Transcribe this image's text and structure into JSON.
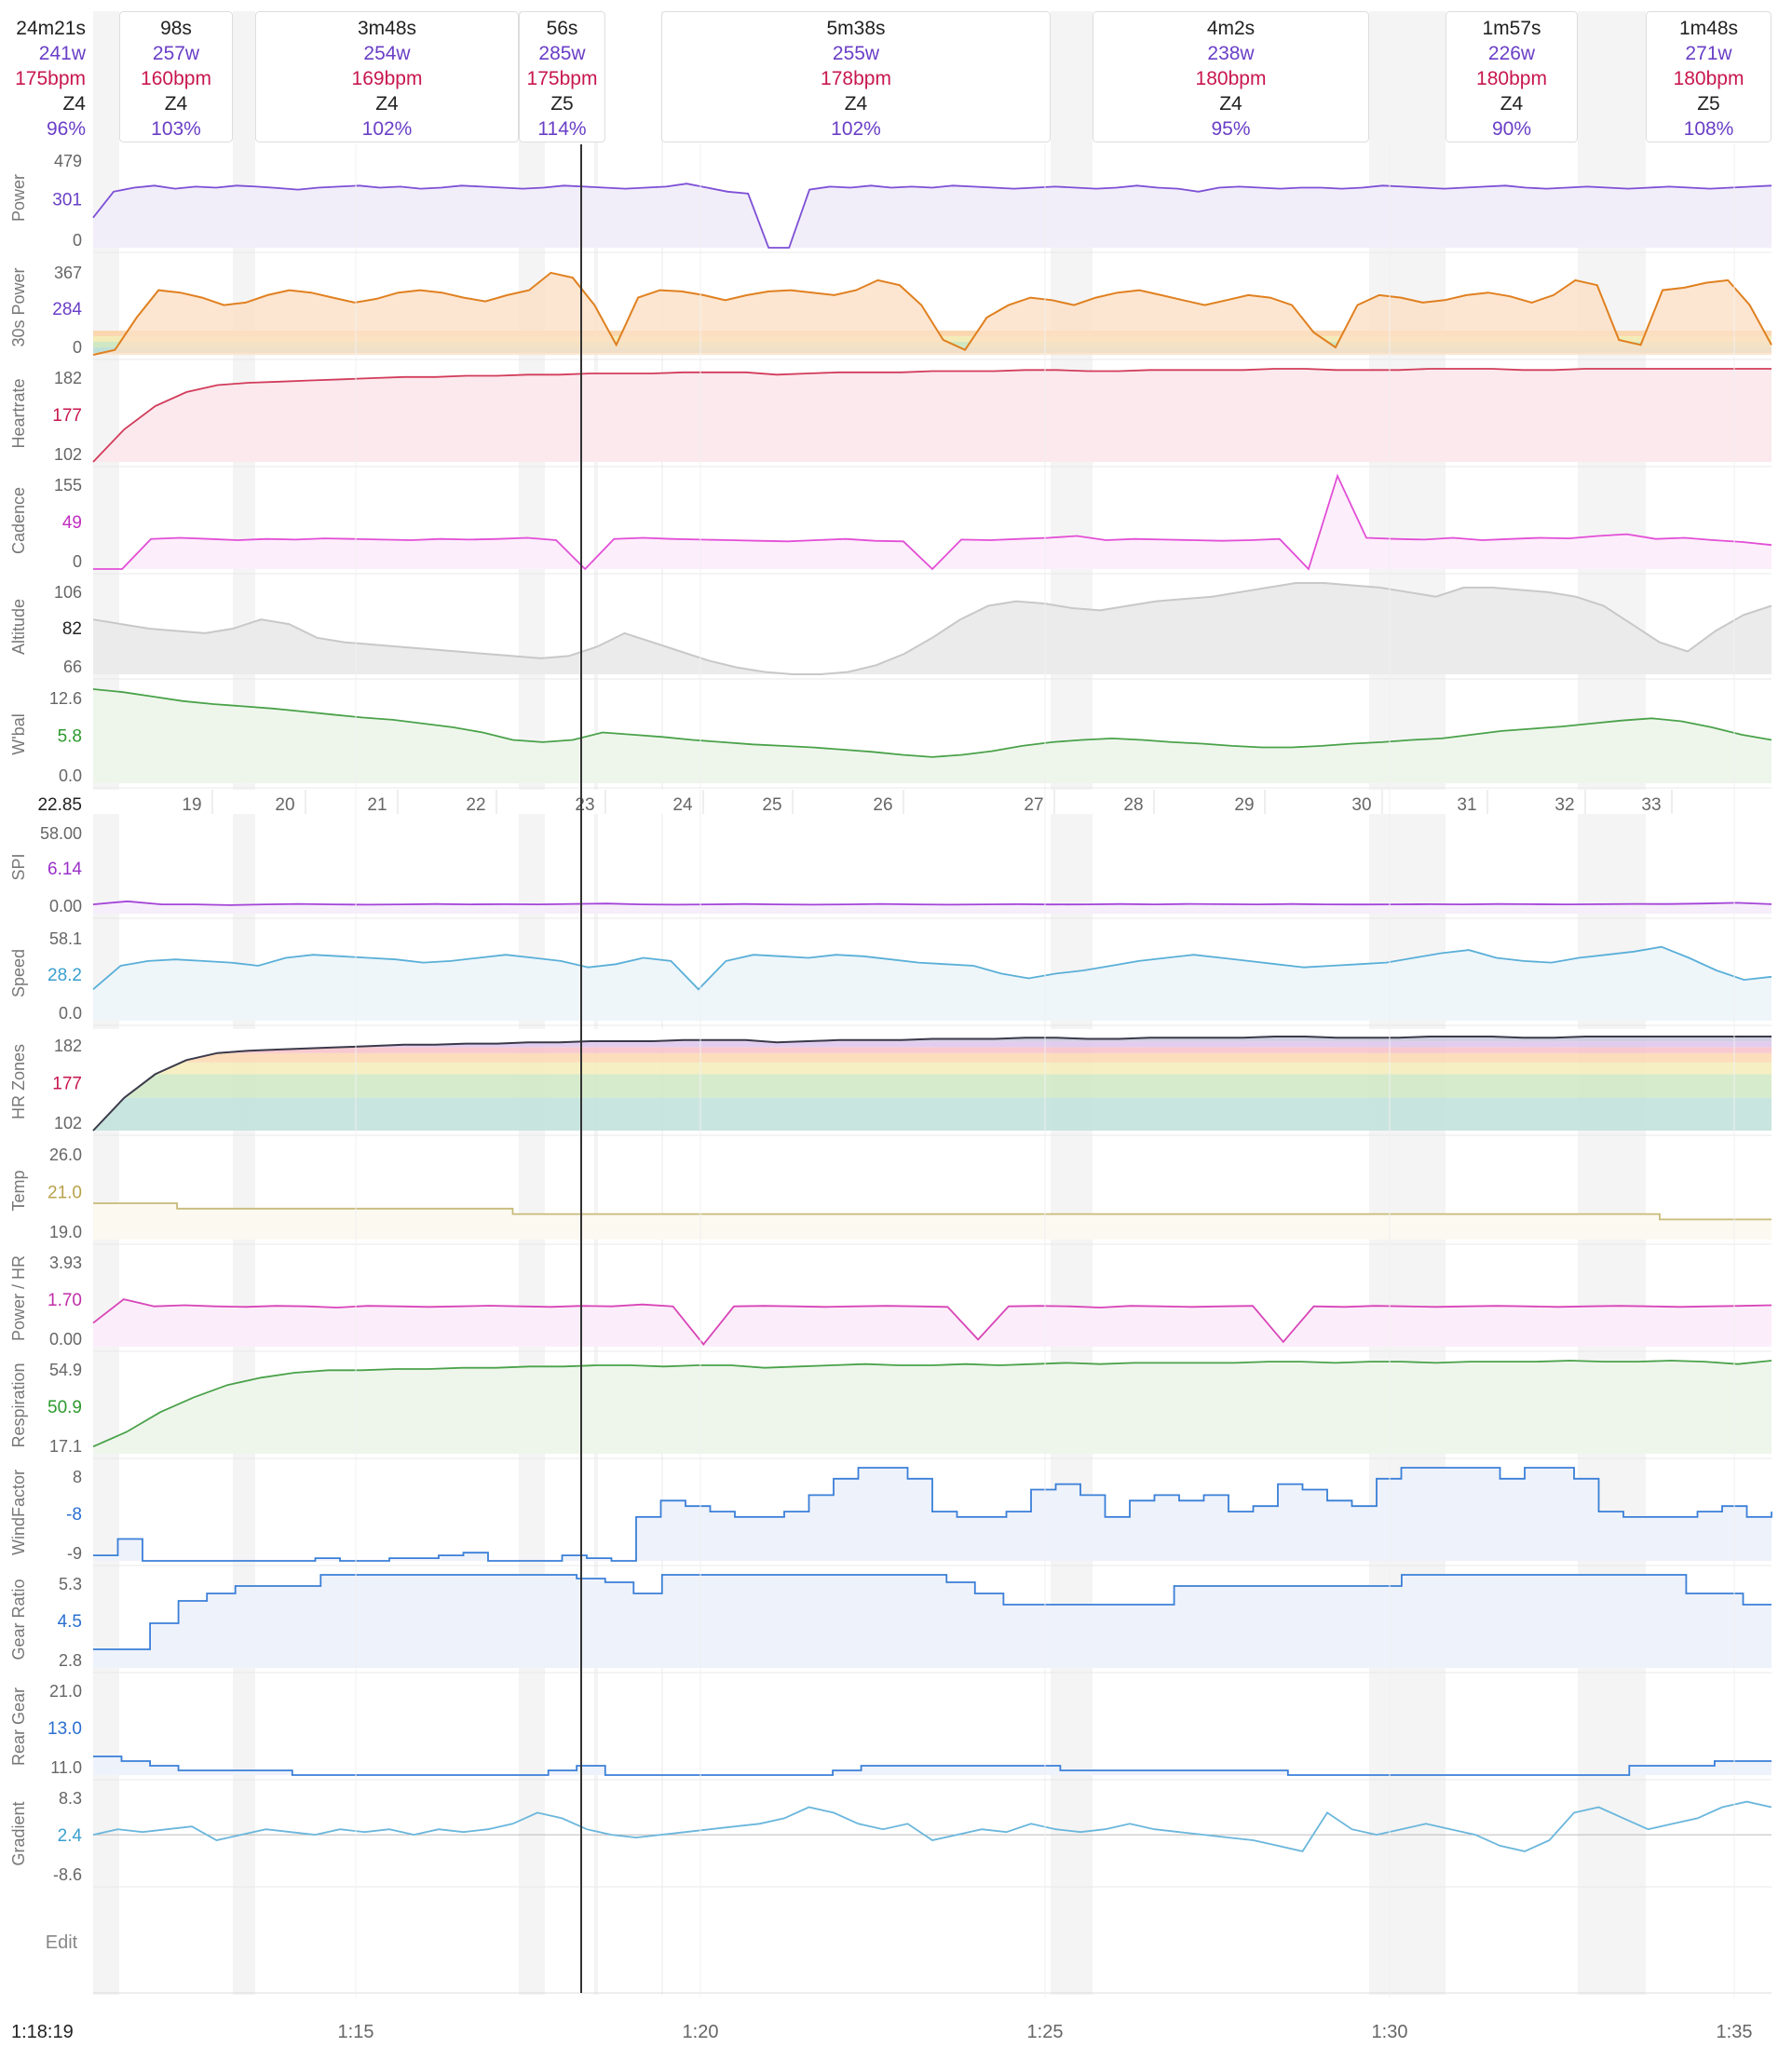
{
  "colors": {
    "power": "#7e4fd6",
    "power_fill": "#f1eef9",
    "bpm": "#c8174f",
    "purple_text": "#6a3fc7",
    "heartrate": "#d23c5a",
    "heartrate_fill": "#fbe9ee",
    "cadence": "#e24fd6",
    "cadence_fill": "#fdeefc",
    "altitude": "#c8c8c8",
    "altitude_fill": "#ebebeb",
    "wbal": "#4aa24a",
    "wbal_fill": "#eef6ec",
    "spi": "#a444d8",
    "speed": "#5aafd8",
    "speed_fill": "#eef6fa",
    "hrzones_top": "#3a3a4a",
    "temp": "#c8bb7a",
    "power_hr": "#d845b8",
    "respiration": "#4aa24a",
    "windfactor": "#3a7fd8",
    "gear": "#3a7fd8",
    "gear_fill": "#eef2fb",
    "gradient": "#6ab6dc",
    "grid": "#e6e6e6",
    "text": "#222222",
    "axis_text": "#666666"
  },
  "summary": {
    "time": "24m21s",
    "power": "241w",
    "hr": "175bpm",
    "zone": "Z4",
    "pct": "96%"
  },
  "intervals": [
    {
      "time": "98s",
      "power": "257w",
      "hr": "160bpm",
      "zone": "Z4",
      "pct": "103%"
    },
    {
      "time": "3m48s",
      "power": "254w",
      "hr": "169bpm",
      "zone": "Z4",
      "pct": "102%"
    },
    {
      "time": "56s",
      "power": "285w",
      "hr": "175bpm",
      "zone": "Z5",
      "pct": "114%"
    },
    {
      "time": "5m38s",
      "power": "255w",
      "hr": "178bpm",
      "zone": "Z4",
      "pct": "102%"
    },
    {
      "time": "4m2s",
      "power": "238w",
      "hr": "180bpm",
      "zone": "Z4",
      "pct": "95%"
    },
    {
      "time": "1m57s",
      "power": "226w",
      "hr": "180bpm",
      "zone": "Z4",
      "pct": "90%"
    },
    {
      "time": "1m48s",
      "power": "271w",
      "hr": "180bpm",
      "zone": "Z5",
      "pct": "108%"
    }
  ],
  "chart_data": {
    "type": "line",
    "x_axis": {
      "start_label": "1:18:19",
      "ticks": [
        "1:15",
        "1:20",
        "1:25",
        "1:30",
        "1:35"
      ]
    },
    "distance_axis": {
      "current": "22.85",
      "ticks": [
        "19",
        "20",
        "21",
        "22",
        "23",
        "24",
        "25",
        "26",
        "27",
        "28",
        "29",
        "30",
        "31",
        "32",
        "33"
      ]
    },
    "panels": [
      {
        "key": "power",
        "label": "Power",
        "ticks": [
          "479",
          "301",
          "0"
        ],
        "current": "301",
        "ylim": [
          0,
          479
        ]
      },
      {
        "key": "power30",
        "label": "30s Power",
        "ticks": [
          "367",
          "284",
          "0"
        ],
        "current": "284",
        "ylim": [
          0,
          367
        ]
      },
      {
        "key": "heartrate",
        "label": "Heartrate",
        "ticks": [
          "182",
          "177",
          "102"
        ],
        "current": "177",
        "ylim": [
          102,
          182
        ]
      },
      {
        "key": "cadence",
        "label": "Cadence",
        "ticks": [
          "155",
          "49",
          "0"
        ],
        "current": "49",
        "ylim": [
          0,
          155
        ]
      },
      {
        "key": "altitude",
        "label": "Altitude",
        "ticks": [
          "106",
          "82",
          "66"
        ],
        "current": "82",
        "ylim": [
          66,
          106
        ]
      },
      {
        "key": "wbal",
        "label": "W'bal",
        "ticks": [
          "12.6",
          "5.8",
          "0.0"
        ],
        "current": "5.8",
        "ylim": [
          0,
          12.6
        ]
      },
      {
        "key": "spi",
        "label": "SPI",
        "ticks": [
          "58.00",
          "6.14",
          "0.00"
        ],
        "current": "6.14",
        "ylim": [
          0,
          58
        ]
      },
      {
        "key": "speed",
        "label": "Speed",
        "ticks": [
          "58.1",
          "28.2",
          "0.0"
        ],
        "current": "28.2",
        "ylim": [
          0,
          58.1
        ]
      },
      {
        "key": "hrzones",
        "label": "HR Zones",
        "ticks": [
          "182",
          "177",
          "102"
        ],
        "current": "177",
        "ylim": [
          102,
          182
        ]
      },
      {
        "key": "temp",
        "label": "Temp",
        "ticks": [
          "26.0",
          "21.0",
          "19.0"
        ],
        "current": "21.0",
        "ylim": [
          19,
          26
        ]
      },
      {
        "key": "powerhr",
        "label": "Power / HR",
        "ticks": [
          "3.93",
          "1.70",
          "0.00"
        ],
        "current": "1.70",
        "ylim": [
          0,
          3.93
        ]
      },
      {
        "key": "respiration",
        "label": "Respiration",
        "ticks": [
          "54.9",
          "50.9",
          "17.1"
        ],
        "current": "50.9",
        "ylim": [
          17.1,
          54.9
        ]
      },
      {
        "key": "windfactor",
        "label": "WindFactor",
        "ticks": [
          "8",
          "-8",
          "-9"
        ],
        "current": "-8",
        "ylim": [
          -9,
          8
        ]
      },
      {
        "key": "gearratio",
        "label": "Gear Ratio",
        "ticks": [
          "5.3",
          "4.5",
          "2.8"
        ],
        "current": "4.5",
        "ylim": [
          2.8,
          5.3
        ]
      },
      {
        "key": "reargear",
        "label": "Rear Gear",
        "ticks": [
          "21.0",
          "13.0",
          "11.0"
        ],
        "current": "13.0",
        "ylim": [
          11,
          21
        ]
      },
      {
        "key": "gradient",
        "label": "Gradient",
        "ticks": [
          "8.3",
          "2.4",
          "-8.6"
        ],
        "current": "2.4",
        "ylim": [
          -8.6,
          8.3
        ]
      }
    ],
    "series": {
      "power": [
        150,
        280,
        300,
        310,
        295,
        305,
        300,
        310,
        305,
        298,
        290,
        300,
        305,
        310,
        300,
        305,
        295,
        300,
        310,
        305,
        300,
        295,
        300,
        310,
        305,
        300,
        295,
        300,
        305,
        320,
        300,
        280,
        270,
        0,
        0,
        290,
        305,
        300,
        310,
        300,
        305,
        300,
        310,
        305,
        300,
        295,
        300,
        305,
        300,
        295,
        300,
        310,
        300,
        295,
        280,
        300,
        305,
        300,
        295,
        300,
        300,
        295,
        300,
        310,
        305,
        300,
        295,
        300,
        305,
        310,
        300,
        295,
        300,
        305,
        300,
        295,
        300,
        305,
        300,
        295,
        300,
        305,
        310
      ],
      "power30": [
        0,
        20,
        150,
        260,
        250,
        230,
        200,
        210,
        240,
        260,
        250,
        230,
        210,
        225,
        250,
        260,
        250,
        230,
        215,
        240,
        260,
        330,
        310,
        200,
        40,
        230,
        260,
        255,
        240,
        220,
        240,
        255,
        260,
        250,
        240,
        260,
        300,
        280,
        200,
        60,
        20,
        150,
        200,
        230,
        220,
        200,
        230,
        250,
        260,
        240,
        220,
        200,
        220,
        240,
        230,
        200,
        90,
        30,
        200,
        240,
        230,
        210,
        220,
        240,
        250,
        235,
        210,
        240,
        300,
        280,
        60,
        40,
        260,
        270,
        290,
        300,
        200,
        40
      ],
      "heartrate": [
        102,
        130,
        150,
        162,
        168,
        170,
        171,
        172,
        173,
        174,
        175,
        175,
        176,
        176,
        177,
        177,
        178,
        178,
        178,
        179,
        179,
        179,
        177,
        178,
        179,
        179,
        179,
        180,
        180,
        180,
        181,
        181,
        180,
        180,
        181,
        181,
        181,
        181,
        182,
        182,
        181,
        181,
        181,
        182,
        182,
        182,
        181,
        181,
        182,
        182,
        182,
        182,
        182,
        182,
        182
      ],
      "cadence": [
        0,
        0,
        50,
        52,
        50,
        48,
        50,
        49,
        51,
        50,
        49,
        48,
        50,
        49,
        50,
        52,
        48,
        0,
        50,
        52,
        50,
        49,
        48,
        47,
        46,
        48,
        50,
        47,
        46,
        0,
        49,
        48,
        50,
        52,
        55,
        48,
        50,
        49,
        48,
        47,
        48,
        50,
        0,
        155,
        52,
        50,
        49,
        52,
        48,
        50,
        52,
        51,
        55,
        58,
        50,
        52,
        48,
        45,
        40
      ],
      "altitude": [
        90,
        88,
        86,
        85,
        84,
        86,
        90,
        88,
        82,
        80,
        79,
        78,
        77,
        76,
        75,
        74,
        73,
        74,
        78,
        84,
        80,
        76,
        72,
        69,
        67,
        66,
        66,
        67,
        70,
        75,
        82,
        90,
        96,
        98,
        97,
        95,
        94,
        96,
        98,
        99,
        100,
        102,
        104,
        106,
        106,
        105,
        104,
        102,
        100,
        104,
        104,
        103,
        102,
        100,
        96,
        88,
        80,
        76,
        85,
        92,
        96
      ],
      "wbal": [
        12.6,
        12.2,
        11.6,
        11.0,
        10.6,
        10.3,
        10.0,
        9.6,
        9.2,
        8.8,
        8.5,
        8.0,
        7.5,
        6.8,
        5.8,
        5.5,
        5.8,
        6.8,
        6.5,
        6.2,
        5.8,
        5.5,
        5.2,
        5.0,
        4.8,
        4.5,
        4.2,
        3.8,
        3.5,
        3.8,
        4.3,
        5.0,
        5.5,
        5.8,
        6.0,
        5.8,
        5.5,
        5.3,
        5.0,
        4.8,
        4.8,
        5.0,
        5.3,
        5.5,
        5.8,
        6.0,
        6.5,
        7.0,
        7.3,
        7.6,
        8.0,
        8.4,
        8.7,
        8.3,
        7.5,
        6.5,
        5.8
      ],
      "spi": [
        6,
        8,
        6,
        6,
        5.5,
        6,
        6.3,
        6,
        5.8,
        6,
        6.2,
        6,
        6.1,
        6,
        6.3,
        6.5,
        6,
        5.8,
        6,
        6.2,
        6,
        5.8,
        6,
        6.3,
        6,
        5.8,
        6,
        6.1,
        5.9,
        6,
        6.2,
        6,
        6.3,
        6.1,
        6,
        6.2,
        6,
        5.9,
        6,
        6.1,
        6,
        6.2,
        6.1,
        6,
        6.1,
        6.3,
        6.2,
        6.5,
        7,
        6.1
      ],
      "speed": [
        20,
        35,
        38,
        39,
        38,
        37,
        35,
        40,
        42,
        41,
        40,
        39,
        37,
        38,
        40,
        42,
        40,
        38,
        34,
        36,
        40,
        38,
        20,
        38,
        42,
        41,
        40,
        42,
        41,
        39,
        37,
        36,
        35,
        30,
        27,
        30,
        32,
        35,
        38,
        40,
        42,
        40,
        38,
        36,
        34,
        35,
        36,
        37,
        40,
        43,
        45,
        40,
        38,
        37,
        40,
        42,
        44,
        47,
        40,
        32,
        26,
        28
      ],
      "hrzones": [
        102,
        130,
        150,
        162,
        168,
        170,
        171,
        172,
        173,
        174,
        175,
        175,
        176,
        176,
        177,
        177,
        178,
        178,
        178,
        179,
        179,
        179,
        177,
        178,
        179,
        179,
        179,
        180,
        180,
        180,
        181,
        181,
        180,
        180,
        181,
        181,
        181,
        181,
        182,
        182,
        181,
        181,
        181,
        182,
        182,
        182,
        181,
        181,
        182,
        182,
        182,
        182,
        182,
        182,
        182
      ],
      "temp": [
        21.7,
        21.7,
        21.7,
        21.3,
        21.3,
        21.3,
        21.3,
        21.3,
        21.3,
        21.3,
        21.3,
        21.3,
        21.3,
        21.3,
        21.3,
        20.9,
        20.9,
        20.9,
        20.9,
        20.9,
        20.9,
        20.9,
        20.9,
        20.9,
        20.9,
        20.9,
        20.9,
        20.9,
        20.9,
        20.9,
        20.9,
        20.9,
        20.9,
        20.9,
        20.9,
        20.9,
        20.9,
        20.9,
        20.9,
        20.9,
        20.9,
        20.9,
        20.9,
        20.9,
        20.9,
        20.9,
        20.9,
        20.9,
        20.9,
        20.9,
        20.9,
        20.9,
        20.9,
        20.9,
        20.9,
        20.9,
        20.5,
        20.5,
        20.5,
        20.5,
        20.5
      ],
      "powerhr": [
        1.0,
        2.0,
        1.7,
        1.75,
        1.7,
        1.68,
        1.72,
        1.7,
        1.65,
        1.72,
        1.7,
        1.68,
        1.7,
        1.73,
        1.7,
        1.68,
        1.72,
        1.7,
        1.78,
        1.7,
        0.1,
        1.7,
        1.72,
        1.7,
        1.68,
        1.7,
        1.72,
        1.7,
        1.68,
        0.3,
        1.7,
        1.72,
        1.7,
        1.65,
        1.72,
        1.7,
        1.68,
        1.7,
        1.72,
        0.2,
        1.7,
        1.68,
        1.72,
        1.7,
        1.68,
        1.7,
        1.72,
        1.7,
        1.68,
        1.7,
        1.72,
        1.7,
        1.68,
        1.7,
        1.72,
        1.75
      ],
      "respiration": [
        20,
        26,
        34,
        40,
        45,
        48,
        50,
        51,
        51,
        51.5,
        51.5,
        52,
        52,
        52.5,
        52.5,
        53,
        53,
        52.5,
        53,
        53,
        52,
        52.5,
        53,
        53.5,
        53,
        53,
        53.5,
        53,
        53.5,
        54,
        53.5,
        54,
        54,
        54,
        54,
        54.5,
        54.5,
        54,
        54.5,
        54.5,
        54,
        54.5,
        54.5,
        54.5,
        54.9,
        54.5,
        54.5,
        54.9,
        54.5,
        53.5,
        54.9
      ],
      "windfactor": [
        -8,
        -5,
        -9,
        -9,
        -9,
        -9,
        -9,
        -9,
        -9,
        -8.5,
        -9,
        -9,
        -8.5,
        -8.5,
        -8,
        -7.5,
        -9,
        -9,
        -9,
        -8,
        -8.5,
        -9,
        -1,
        2,
        1,
        0,
        -1,
        -1,
        0,
        3,
        6,
        8,
        8,
        6,
        0,
        -1,
        -1,
        0,
        4,
        5,
        3,
        -1,
        2,
        3,
        2,
        3,
        0,
        1,
        5,
        4,
        2,
        1,
        6,
        8,
        8,
        8,
        8,
        6,
        8,
        8,
        6,
        0,
        -1,
        -1,
        -1,
        0,
        1,
        -1,
        0
      ],
      "gearratio": [
        3.3,
        3.3,
        4.0,
        4.6,
        4.8,
        5.0,
        5.0,
        5.0,
        5.3,
        5.3,
        5.3,
        5.3,
        5.3,
        5.3,
        5.3,
        5.3,
        5.3,
        5.2,
        5.1,
        4.8,
        5.3,
        5.3,
        5.3,
        5.3,
        5.3,
        5.3,
        5.3,
        5.3,
        5.3,
        5.3,
        5.1,
        4.8,
        4.5,
        4.5,
        4.5,
        4.5,
        4.5,
        4.5,
        5.0,
        5.0,
        5.0,
        5.0,
        5.0,
        5.0,
        5.0,
        5.0,
        5.3,
        5.3,
        5.3,
        5.3,
        5.3,
        5.3,
        5.3,
        5.3,
        5.3,
        5.3,
        4.8,
        4.8,
        4.5,
        4.5
      ],
      "reargear": [
        13,
        12.5,
        12,
        11.5,
        11.5,
        11.5,
        11.5,
        11,
        11,
        11,
        11,
        11,
        11,
        11,
        11,
        11,
        11.5,
        12,
        11,
        11,
        11,
        11,
        11,
        11,
        11,
        11,
        11.5,
        12,
        12,
        12,
        12,
        12,
        12,
        12,
        11.5,
        11.5,
        11.5,
        11.5,
        11.5,
        11.5,
        11.5,
        11.5,
        11,
        11,
        11,
        11,
        11,
        11,
        11,
        11,
        11,
        11,
        11,
        11,
        12,
        12,
        12,
        12.5,
        12.5,
        12.5
      ],
      "gradient": [
        0,
        1,
        0.5,
        1,
        1.5,
        -1,
        0,
        1,
        0.5,
        0,
        1,
        0.5,
        1,
        0,
        1,
        0.5,
        1,
        2,
        4,
        3,
        1,
        0,
        -0.5,
        0,
        0.5,
        1,
        1.5,
        2,
        3,
        5,
        4,
        2,
        1,
        2,
        -1,
        0,
        1,
        0.5,
        2,
        1,
        0.5,
        1,
        2,
        1,
        0.5,
        0,
        -0.5,
        -1,
        -2,
        -3,
        4,
        1,
        0,
        1,
        2,
        1,
        0,
        -2,
        -3,
        -1,
        4,
        5,
        3,
        1,
        2,
        3,
        5,
        6,
        5
      ]
    }
  },
  "edit_label": "Edit"
}
